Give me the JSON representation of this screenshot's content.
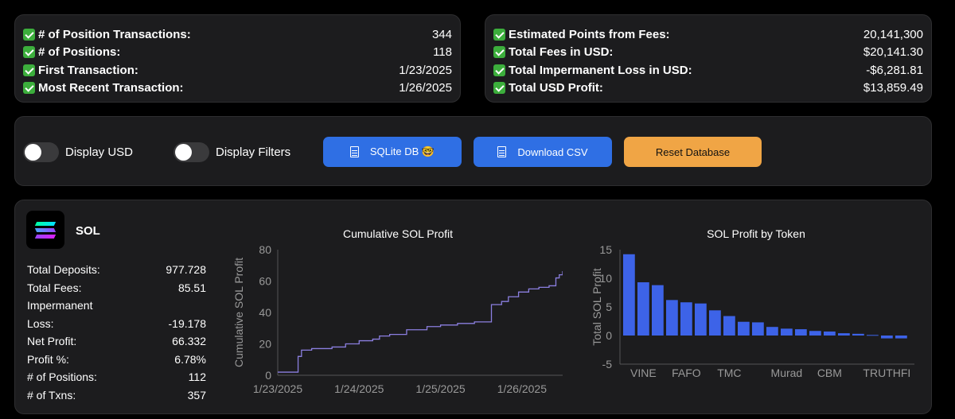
{
  "summary_left": [
    {
      "label": "# of Position Transactions:",
      "value": "344"
    },
    {
      "label": "# of Positions:",
      "value": "118"
    },
    {
      "label": "First Transaction:",
      "value": "1/23/2025"
    },
    {
      "label": "Most Recent Transaction:",
      "value": "1/26/2025"
    }
  ],
  "summary_right": [
    {
      "label": "Estimated Points from Fees:",
      "value": "20,141,300"
    },
    {
      "label": "Total Fees in USD:",
      "value": "$20,141.30"
    },
    {
      "label": "Total Impermanent Loss in USD:",
      "value": "-$6,281.81"
    },
    {
      "label": "Total USD Profit:",
      "value": "$13,859.49"
    }
  ],
  "controls": {
    "display_usd": "Display USD",
    "display_filters": "Display Filters",
    "sqlite_btn": "SQLite DB 🤓",
    "csv_btn": "Download CSV",
    "reset_btn": "Reset Database"
  },
  "colors": {
    "accent_blue": "#2f6fe4",
    "accent_orange": "#f0a545",
    "chart_line": "#8b7fe0",
    "bar": "#3d63e8",
    "check": "#3cae3c"
  },
  "sol": {
    "title": "SOL",
    "stats": [
      {
        "label": "Total Deposits:",
        "value": "977.728"
      },
      {
        "label": "Total Fees:",
        "value": "85.51"
      },
      {
        "label": "Impermanent",
        "value": ""
      },
      {
        "label": "Loss:",
        "value": "-19.178"
      },
      {
        "label": "Net Profit:",
        "value": "66.332"
      },
      {
        "label": "Profit %:",
        "value": "6.78%"
      },
      {
        "label": "# of Positions:",
        "value": "112"
      },
      {
        "label": "# of Txns:",
        "value": "357"
      }
    ]
  },
  "chart_data": [
    {
      "type": "line",
      "title": "Cumulative SOL Profit",
      "ylabel": "Cumulative SOL Profit",
      "xlabel": "",
      "ylim": [
        0,
        80
      ],
      "yticks": [
        0,
        20,
        40,
        60,
        80
      ],
      "xlim": [
        "2025-01-23T00:00",
        "2025-01-26T12:00"
      ],
      "xticks": [
        {
          "label": "1/23/2025",
          "x": "2025-01-23T00:00"
        },
        {
          "label": "1/24/2025",
          "x": "2025-01-24T00:00"
        },
        {
          "label": "1/25/2025",
          "x": "2025-01-25T00:00"
        },
        {
          "label": "1/26/2025",
          "x": "2025-01-26T00:00"
        }
      ],
      "points": [
        [
          "2025-01-23T00:00",
          2
        ],
        [
          "2025-01-23T05:00",
          2
        ],
        [
          "2025-01-23T06:00",
          12
        ],
        [
          "2025-01-23T07:00",
          16
        ],
        [
          "2025-01-23T10:00",
          17
        ],
        [
          "2025-01-23T16:00",
          18
        ],
        [
          "2025-01-23T20:00",
          20
        ],
        [
          "2025-01-24T00:00",
          22
        ],
        [
          "2025-01-24T04:00",
          23
        ],
        [
          "2025-01-24T06:00",
          25
        ],
        [
          "2025-01-24T09:00",
          26
        ],
        [
          "2025-01-24T14:00",
          29
        ],
        [
          "2025-01-24T20:00",
          31
        ],
        [
          "2025-01-25T00:00",
          32
        ],
        [
          "2025-01-25T05:00",
          33
        ],
        [
          "2025-01-25T10:00",
          34
        ],
        [
          "2025-01-25T12:00",
          34
        ],
        [
          "2025-01-25T15:00",
          45
        ],
        [
          "2025-01-25T18:00",
          47
        ],
        [
          "2025-01-25T20:00",
          50
        ],
        [
          "2025-01-25T23:00",
          53
        ],
        [
          "2025-01-26T02:00",
          55
        ],
        [
          "2025-01-26T05:00",
          56
        ],
        [
          "2025-01-26T08:00",
          57
        ],
        [
          "2025-01-26T09:00",
          57
        ],
        [
          "2025-01-26T10:00",
          62
        ],
        [
          "2025-01-26T11:00",
          64
        ],
        [
          "2025-01-26T12:00",
          66.332
        ]
      ]
    },
    {
      "type": "bar",
      "title": "SOL Profit by Token",
      "ylabel": "Total SOL Profit",
      "xlabel": "",
      "ylim": [
        -5,
        15
      ],
      "yticks": [
        -5,
        0,
        5,
        10,
        15
      ],
      "categories": [
        "",
        "VINE",
        "",
        "",
        "FAFO",
        "",
        "",
        "TMC",
        "",
        "",
        "",
        "Murad",
        "",
        "",
        "CBM",
        "",
        "",
        "",
        "TRUTHFI",
        ""
      ],
      "values": [
        14.2,
        9.3,
        8.8,
        6.2,
        5.8,
        5.6,
        4.4,
        3.4,
        2.4,
        2.3,
        1.5,
        1.2,
        1.1,
        0.8,
        0.7,
        0.4,
        0.3,
        0.1,
        -0.5,
        -0.5
      ]
    }
  ]
}
